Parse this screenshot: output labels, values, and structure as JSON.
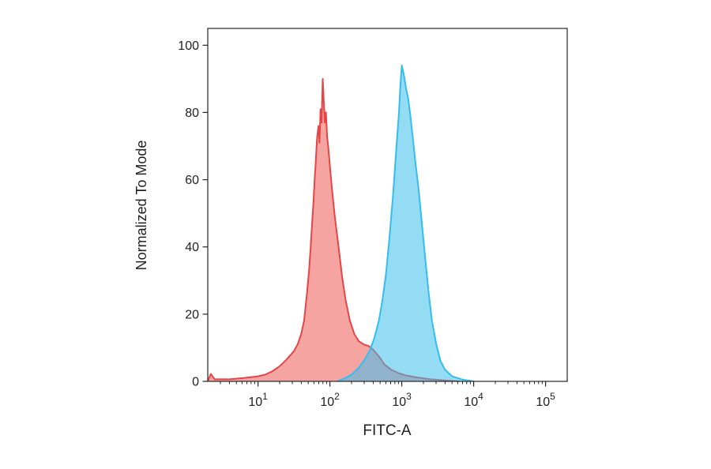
{
  "chart_data": {
    "type": "area",
    "subtype": "flow-cytometry-histogram-overlay",
    "title": "",
    "xlabel": "FITC-A",
    "ylabel": "Normalized To Mode",
    "x_scale": "log",
    "xlim": [
      2,
      200000
    ],
    "ylim": [
      0,
      105
    ],
    "xticks": [
      10,
      100,
      1000,
      10000,
      100000
    ],
    "yticks": [
      0,
      20,
      40,
      60,
      80,
      100
    ],
    "grid": false,
    "legend": "none",
    "axis_color": "#262626",
    "series": [
      {
        "name": "red-population",
        "stroke": "#e64545",
        "fill": "#ee5a55",
        "fill_opacity": 0.55,
        "points": [
          [
            2,
            0
          ],
          [
            2.2,
            2.2
          ],
          [
            2.5,
            0.6
          ],
          [
            4,
            0.6
          ],
          [
            6.3,
            1
          ],
          [
            10,
            1.5
          ],
          [
            12.6,
            2
          ],
          [
            15.8,
            3
          ],
          [
            20,
            4.5
          ],
          [
            25,
            6.5
          ],
          [
            31.6,
            9
          ],
          [
            35.5,
            11
          ],
          [
            39.8,
            14
          ],
          [
            43.7,
            18
          ],
          [
            47.9,
            26
          ],
          [
            51.3,
            33
          ],
          [
            53.7,
            39
          ],
          [
            56.2,
            46
          ],
          [
            58.9,
            53
          ],
          [
            61.7,
            61
          ],
          [
            63.1,
            64
          ],
          [
            66.1,
            72
          ],
          [
            69.2,
            76
          ],
          [
            71.6,
            71
          ],
          [
            74.1,
            81
          ],
          [
            76.7,
            77
          ],
          [
            79.4,
            90
          ],
          [
            82.2,
            83
          ],
          [
            85.1,
            77
          ],
          [
            88.1,
            80
          ],
          [
            91.2,
            73
          ],
          [
            95.5,
            69
          ],
          [
            100,
            64
          ],
          [
            107,
            57
          ],
          [
            117,
            49
          ],
          [
            132,
            40
          ],
          [
            148,
            31
          ],
          [
            166,
            24
          ],
          [
            190,
            18
          ],
          [
            219,
            14
          ],
          [
            251,
            12
          ],
          [
            295,
            11
          ],
          [
            347,
            10.5
          ],
          [
            398,
            9.5
          ],
          [
            479,
            7.5
          ],
          [
            575,
            5
          ],
          [
            708,
            3.5
          ],
          [
            891,
            2.5
          ],
          [
            1122,
            1.8
          ],
          [
            1585,
            1.2
          ],
          [
            2512,
            0.6
          ],
          [
            3981,
            0.3
          ],
          [
            6310,
            0
          ]
        ]
      },
      {
        "name": "cyan-population",
        "stroke": "#35bdee",
        "fill": "#3cbeeb",
        "fill_opacity": 0.55,
        "points": [
          [
            126,
            0
          ],
          [
            158,
            0.8
          ],
          [
            200,
            2
          ],
          [
            251,
            4
          ],
          [
            316,
            7
          ],
          [
            363,
            9.5
          ],
          [
            417,
            13
          ],
          [
            479,
            18
          ],
          [
            537,
            24
          ],
          [
            603,
            32
          ],
          [
            676,
            43
          ],
          [
            759,
            56
          ],
          [
            832,
            68
          ],
          [
            912,
            80
          ],
          [
            955,
            88
          ],
          [
            1000,
            94
          ],
          [
            1072,
            91
          ],
          [
            1148,
            87
          ],
          [
            1230,
            84
          ],
          [
            1318,
            79
          ],
          [
            1445,
            71
          ],
          [
            1549,
            65
          ],
          [
            1698,
            58
          ],
          [
            1862,
            49
          ],
          [
            2089,
            38
          ],
          [
            2344,
            27
          ],
          [
            2630,
            18
          ],
          [
            3020,
            11
          ],
          [
            3467,
            6
          ],
          [
            3981,
            3.5
          ],
          [
            5012,
            1.5
          ],
          [
            7079,
            0.5
          ],
          [
            10000,
            0
          ]
        ]
      }
    ]
  }
}
